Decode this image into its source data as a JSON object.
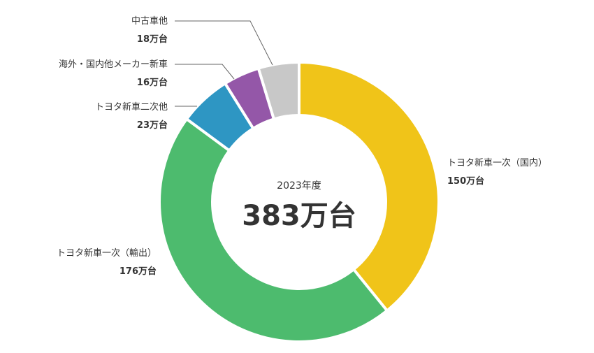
{
  "chart_data": {
    "type": "pie",
    "center": {
      "year_label": "2023年度",
      "total_label": "383万台"
    },
    "unit": "万台",
    "total": 383,
    "slices": [
      {
        "label": "トヨタ新車一次（国内）",
        "value": 150,
        "value_label": "150万台",
        "color": "#f0c419"
      },
      {
        "label": "トヨタ新車一次（輸出）",
        "value": 176,
        "value_label": "176万台",
        "color": "#4dbb6e"
      },
      {
        "label": "トヨタ新車二次他",
        "value": 23,
        "value_label": "23万台",
        "color": "#2e96c3"
      },
      {
        "label": "海外・国内他メーカー新車",
        "value": 16,
        "value_label": "16万台",
        "color": "#9457a8"
      },
      {
        "label": "中古車他",
        "value": 18,
        "value_label": "18万台",
        "color": "#c8c8c8"
      }
    ]
  }
}
